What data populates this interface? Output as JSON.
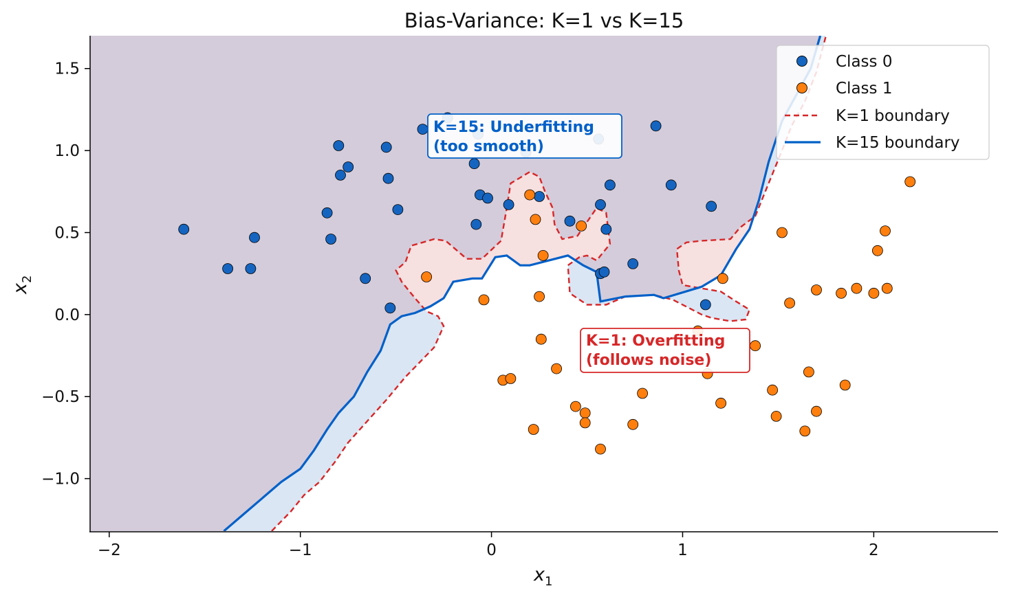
{
  "chart_data": {
    "type": "scatter",
    "title": "Bias-Variance: K=1 vs K=15",
    "xlabel_main": "x",
    "xlabel_sub": "1",
    "ylabel_main": "x",
    "ylabel_sub": "2",
    "xlim": [
      -2.1,
      2.65
    ],
    "ylim": [
      -1.32,
      1.7
    ],
    "xticks": [
      -2,
      -1,
      0,
      1,
      2
    ],
    "xtick_labels": [
      "−2",
      "−1",
      "0",
      "1",
      "2"
    ],
    "yticks": [
      -1.0,
      -0.5,
      0.0,
      0.5,
      1.0,
      1.5
    ],
    "ytick_labels": [
      "−1.0",
      "−0.5",
      "0.0",
      "0.5",
      "1.0",
      "1.5"
    ],
    "grid": false,
    "legend_position": "top-right",
    "legend": [
      {
        "label": "Class 0",
        "kind": "marker",
        "color": "#1565c0"
      },
      {
        "label": "Class 1",
        "kind": "marker",
        "color": "#ff7f0e"
      },
      {
        "label": "K=1 boundary",
        "kind": "dashed",
        "color": "#d62728"
      },
      {
        "label": "K=15 boundary",
        "kind": "solid",
        "color": "#0060c8"
      }
    ],
    "colors": {
      "class0": "#1565c0",
      "class1": "#ff7f0e",
      "k1": "#d62728",
      "k15": "#0060c8",
      "region_both0": "#d4ccdb",
      "region_k1only": "#dae6f4",
      "region_k15only": "#f7e0e0"
    },
    "annotations": [
      {
        "line1": "K=15: Underfitting",
        "line2": "(too smooth)",
        "color": "#0060c8",
        "x": -0.3,
        "y": 1.13
      },
      {
        "line1": "K=1: Overfitting",
        "line2": "(follows noise)",
        "color": "#d62728",
        "x": 0.5,
        "y": -0.17
      }
    ],
    "series": [
      {
        "name": "Class 0",
        "points": [
          [
            -1.61,
            0.52
          ],
          [
            -1.38,
            0.28
          ],
          [
            -1.26,
            0.28
          ],
          [
            -1.24,
            0.47
          ],
          [
            -0.86,
            0.62
          ],
          [
            -0.84,
            0.46
          ],
          [
            -0.8,
            1.03
          ],
          [
            -0.79,
            0.85
          ],
          [
            -0.75,
            0.9
          ],
          [
            -0.66,
            0.22
          ],
          [
            -0.55,
            1.02
          ],
          [
            -0.54,
            0.83
          ],
          [
            -0.53,
            0.04
          ],
          [
            -0.49,
            0.64
          ],
          [
            -0.36,
            1.13
          ],
          [
            -0.23,
            1.2
          ],
          [
            -0.09,
            0.92
          ],
          [
            -0.08,
            0.55
          ],
          [
            -0.06,
            0.73
          ],
          [
            -0.02,
            0.71
          ],
          [
            -0.07,
            1.1
          ],
          [
            0.09,
            0.67
          ],
          [
            0.18,
            0.99
          ],
          [
            0.25,
            0.72
          ],
          [
            0.41,
            0.57
          ],
          [
            0.56,
            1.07
          ],
          [
            0.57,
            0.67
          ],
          [
            0.57,
            0.25
          ],
          [
            0.59,
            0.26
          ],
          [
            0.6,
            0.52
          ],
          [
            0.62,
            0.79
          ],
          [
            0.74,
            0.31
          ],
          [
            0.86,
            1.15
          ],
          [
            0.94,
            0.79
          ],
          [
            1.12,
            0.06
          ],
          [
            1.15,
            0.66
          ]
        ]
      },
      {
        "name": "Class 1",
        "points": [
          [
            -0.34,
            0.23
          ],
          [
            -0.04,
            0.09
          ],
          [
            0.06,
            -0.4
          ],
          [
            0.1,
            -0.39
          ],
          [
            0.2,
            0.73
          ],
          [
            0.22,
            -0.7
          ],
          [
            0.23,
            0.58
          ],
          [
            0.25,
            0.11
          ],
          [
            0.26,
            -0.15
          ],
          [
            0.27,
            0.36
          ],
          [
            0.34,
            -0.33
          ],
          [
            0.44,
            -0.56
          ],
          [
            0.47,
            0.54
          ],
          [
            0.49,
            -0.6
          ],
          [
            0.49,
            -0.66
          ],
          [
            0.57,
            -0.82
          ],
          [
            0.74,
            -0.67
          ],
          [
            0.79,
            -0.48
          ],
          [
            1.08,
            -0.1
          ],
          [
            1.13,
            -0.36
          ],
          [
            1.2,
            -0.54
          ],
          [
            1.21,
            0.22
          ],
          [
            1.38,
            -0.19
          ],
          [
            1.47,
            -0.46
          ],
          [
            1.49,
            -0.62
          ],
          [
            1.52,
            0.5
          ],
          [
            1.56,
            0.07
          ],
          [
            1.64,
            -0.71
          ],
          [
            1.66,
            -0.35
          ],
          [
            1.7,
            0.15
          ],
          [
            1.7,
            -0.59
          ],
          [
            1.83,
            0.13
          ],
          [
            1.85,
            -0.43
          ],
          [
            1.91,
            0.16
          ],
          [
            2.0,
            0.13
          ],
          [
            2.02,
            0.39
          ],
          [
            2.06,
            0.51
          ],
          [
            2.07,
            0.16
          ],
          [
            2.19,
            0.81
          ]
        ]
      }
    ],
    "k15_boundary": [
      [
        -1.4,
        -1.32
      ],
      [
        -1.3,
        -1.22
      ],
      [
        -1.2,
        -1.12
      ],
      [
        -1.1,
        -1.02
      ],
      [
        -1.0,
        -0.94
      ],
      [
        -0.93,
        -0.83
      ],
      [
        -0.86,
        -0.7
      ],
      [
        -0.8,
        -0.6
      ],
      [
        -0.72,
        -0.5
      ],
      [
        -0.65,
        -0.35
      ],
      [
        -0.58,
        -0.22
      ],
      [
        -0.53,
        -0.06
      ],
      [
        -0.47,
        -0.01
      ],
      [
        -0.4,
        0.01
      ],
      [
        -0.32,
        0.05
      ],
      [
        -0.25,
        0.1
      ],
      [
        -0.2,
        0.2
      ],
      [
        -0.1,
        0.22
      ],
      [
        -0.05,
        0.22
      ],
      [
        0.02,
        0.35
      ],
      [
        0.08,
        0.36
      ],
      [
        0.15,
        0.3
      ],
      [
        0.2,
        0.3
      ],
      [
        0.3,
        0.33
      ],
      [
        0.4,
        0.36
      ],
      [
        0.48,
        0.3
      ],
      [
        0.55,
        0.26
      ],
      [
        0.57,
        0.08
      ],
      [
        0.7,
        0.11
      ],
      [
        0.85,
        0.12
      ],
      [
        0.9,
        0.1
      ],
      [
        1.1,
        0.17
      ],
      [
        1.2,
        0.24
      ],
      [
        1.28,
        0.4
      ],
      [
        1.35,
        0.52
      ],
      [
        1.4,
        0.7
      ],
      [
        1.45,
        0.93
      ],
      [
        1.52,
        1.18
      ],
      [
        1.6,
        1.35
      ],
      [
        1.67,
        1.5
      ],
      [
        1.72,
        1.7
      ]
    ],
    "k1_boundary": [
      [
        -1.15,
        -1.32
      ],
      [
        -1.05,
        -1.2
      ],
      [
        -0.98,
        -1.1
      ],
      [
        -0.9,
        -1.02
      ],
      [
        -0.82,
        -0.9
      ],
      [
        -0.75,
        -0.78
      ],
      [
        -0.65,
        -0.65
      ],
      [
        -0.55,
        -0.52
      ],
      [
        -0.45,
        -0.38
      ],
      [
        -0.3,
        -0.2
      ],
      [
        -0.25,
        -0.07
      ],
      [
        -0.28,
        -0.01
      ],
      [
        -0.34,
        0.02
      ],
      [
        -0.4,
        0.1
      ],
      [
        -0.47,
        0.2
      ],
      [
        -0.5,
        0.27
      ],
      [
        -0.45,
        0.32
      ],
      [
        -0.42,
        0.42
      ],
      [
        -0.3,
        0.46
      ],
      [
        -0.24,
        0.45
      ],
      [
        -0.13,
        0.34
      ],
      [
        -0.05,
        0.34
      ],
      [
        0.05,
        0.45
      ],
      [
        0.08,
        0.65
      ],
      [
        0.1,
        0.8
      ],
      [
        0.2,
        0.87
      ],
      [
        0.25,
        0.84
      ],
      [
        0.28,
        0.75
      ],
      [
        0.32,
        0.65
      ],
      [
        0.33,
        0.55
      ],
      [
        0.37,
        0.46
      ],
      [
        0.45,
        0.48
      ],
      [
        0.55,
        0.65
      ],
      [
        0.6,
        0.62
      ],
      [
        0.62,
        0.43
      ],
      [
        0.55,
        0.33
      ],
      [
        0.5,
        0.36
      ],
      [
        0.46,
        0.35
      ],
      [
        0.4,
        0.3
      ],
      [
        0.41,
        0.13
      ],
      [
        0.5,
        0.06
      ],
      [
        0.6,
        0.06
      ],
      [
        0.7,
        0.11
      ],
      [
        0.85,
        0.12
      ],
      [
        0.95,
        0.09
      ],
      [
        1.05,
        0.03
      ],
      [
        1.1,
        0.0
      ],
      [
        1.15,
        -0.02
      ],
      [
        1.25,
        -0.04
      ],
      [
        1.33,
        -0.03
      ],
      [
        1.35,
        0.03
      ],
      [
        1.28,
        0.08
      ],
      [
        1.2,
        0.14
      ],
      [
        1.1,
        0.16
      ],
      [
        1.0,
        0.18
      ],
      [
        0.98,
        0.27
      ],
      [
        0.97,
        0.4
      ],
      [
        1.02,
        0.44
      ],
      [
        1.1,
        0.45
      ],
      [
        1.25,
        0.46
      ],
      [
        1.3,
        0.53
      ],
      [
        1.38,
        0.6
      ],
      [
        1.45,
        0.8
      ],
      [
        1.52,
        1.0
      ],
      [
        1.57,
        1.15
      ],
      [
        1.64,
        1.3
      ],
      [
        1.7,
        1.48
      ],
      [
        1.75,
        1.7
      ]
    ]
  }
}
